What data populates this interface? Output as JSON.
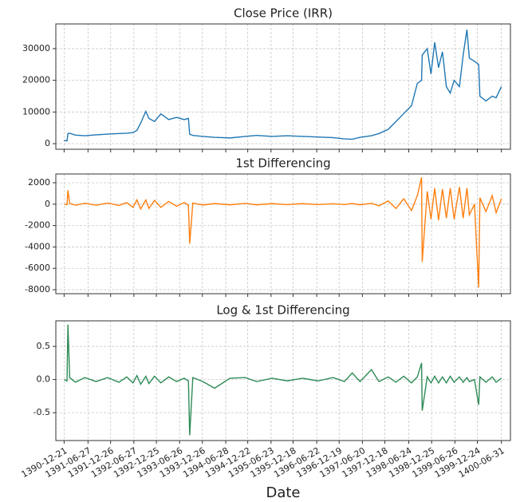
{
  "chart_data": [
    {
      "type": "line",
      "title": "Close Price (IRR)",
      "color": "#1f77b4",
      "grid": true,
      "x": [
        "1390-12-21",
        "1391-01-15",
        "1391-01-22",
        "1391-02-05",
        "1391-03-20",
        "1391-06-01",
        "1391-09-01",
        "1391-12-01",
        "1392-03-01",
        "1392-05-01",
        "1392-06-20",
        "1392-07-20",
        "1392-08-20",
        "1392-10-01",
        "1392-10-25",
        "1392-12-10",
        "1393-02-01",
        "1393-04-01",
        "1393-06-01",
        "1393-08-01",
        "1393-09-05",
        "1393-09-15",
        "1393-10-10",
        "1394-01-01",
        "1394-04-01",
        "1394-08-01",
        "1394-12-01",
        "1395-03-01",
        "1395-07-01",
        "1395-11-01",
        "1396-03-01",
        "1396-07-01",
        "1396-11-01",
        "1397-02-01",
        "1397-04-01",
        "1397-06-01",
        "1397-09-01",
        "1397-11-01",
        "1398-01-15",
        "1398-03-15",
        "1398-05-15",
        "1398-07-15",
        "1398-09-01",
        "1398-10-05",
        "1398-10-10",
        "1398-11-20",
        "1398-12-20",
        "1399-01-20",
        "1399-02-20",
        "1399-03-20",
        "1399-04-20",
        "1399-05-20",
        "1399-06-20",
        "1399-08-01",
        "1399-09-01",
        "1399-10-01",
        "1399-10-20",
        "1399-12-01",
        "1400-01-05",
        "1400-01-15",
        "1400-03-01",
        "1400-04-20",
        "1400-05-20",
        "1400-06-31"
      ],
      "values": [
        1000,
        900,
        3200,
        3300,
        2700,
        2500,
        2800,
        3000,
        3200,
        3300,
        3500,
        4200,
        6500,
        10200,
        8000,
        7000,
        9400,
        7600,
        8300,
        7600,
        8000,
        3000,
        2600,
        2300,
        2000,
        1800,
        2300,
        2600,
        2300,
        2500,
        2300,
        2100,
        1900,
        1500,
        1400,
        2000,
        2500,
        3200,
        4500,
        7000,
        9500,
        12000,
        19000,
        20000,
        28000,
        30000,
        22000,
        32000,
        24000,
        29000,
        18000,
        16000,
        20000,
        18000,
        28000,
        36000,
        27000,
        26000,
        25000,
        15000,
        13500,
        15000,
        14500,
        18000
      ],
      "ylim": [
        -1760,
        37800
      ],
      "yticks": [
        0,
        10000,
        20000,
        30000
      ]
    },
    {
      "type": "line",
      "title": "1st Differencing",
      "color": "#ff7f0e",
      "grid": true,
      "x": [
        "1390-12-21",
        "1391-01-15",
        "1391-01-22",
        "1391-02-05",
        "1391-03-20",
        "1391-06-01",
        "1391-09-01",
        "1391-12-01",
        "1392-03-01",
        "1392-05-01",
        "1392-06-20",
        "1392-07-20",
        "1392-08-20",
        "1392-10-01",
        "1392-10-25",
        "1392-12-10",
        "1393-02-01",
        "1393-04-01",
        "1393-06-01",
        "1393-08-01",
        "1393-09-05",
        "1393-09-15",
        "1393-10-10",
        "1394-01-01",
        "1394-04-01",
        "1394-08-01",
        "1394-12-01",
        "1395-03-01",
        "1395-07-01",
        "1395-11-01",
        "1396-03-01",
        "1396-07-01",
        "1396-11-01",
        "1397-02-01",
        "1397-04-01",
        "1397-06-01",
        "1397-09-01",
        "1397-11-01",
        "1398-01-15",
        "1398-03-15",
        "1398-05-15",
        "1398-07-15",
        "1398-09-01",
        "1398-10-05",
        "1398-10-10",
        "1398-11-20",
        "1398-12-20",
        "1399-01-20",
        "1399-02-20",
        "1399-03-20",
        "1399-04-20",
        "1399-05-20",
        "1399-06-20",
        "1399-08-01",
        "1399-09-01",
        "1399-10-01",
        "1399-10-20",
        "1399-12-01",
        "1400-01-05",
        "1400-01-15",
        "1400-03-01",
        "1400-04-20",
        "1400-05-20",
        "1400-06-31"
      ],
      "values": [
        0,
        -40,
        1300,
        60,
        -100,
        80,
        -90,
        100,
        -120,
        150,
        -300,
        400,
        -450,
        400,
        -400,
        350,
        -300,
        250,
        -200,
        150,
        -100,
        -3700,
        100,
        -80,
        60,
        -60,
        70,
        -60,
        50,
        -50,
        50,
        -40,
        40,
        -40,
        60,
        -60,
        80,
        -150,
        300,
        -400,
        500,
        -600,
        800,
        2500,
        -5400,
        1200,
        -1400,
        1500,
        -1500,
        1400,
        -1300,
        1500,
        -1400,
        1600,
        -1300,
        1500,
        -1000,
        0,
        -7800,
        600,
        -700,
        800,
        -800,
        500
      ],
      "ylim": [
        -8370,
        2820
      ],
      "yticks": [
        -8000,
        -6000,
        -4000,
        -2000,
        0,
        2000
      ]
    },
    {
      "type": "line",
      "title": "Log & 1st Differencing",
      "color": "#2e8b57",
      "grid": true,
      "xlabel": "Date",
      "x": [
        "1390-12-21",
        "1391-01-15",
        "1391-01-22",
        "1391-02-05",
        "1391-03-20",
        "1391-06-01",
        "1391-09-01",
        "1391-12-01",
        "1392-03-01",
        "1392-05-01",
        "1392-06-20",
        "1392-07-20",
        "1392-08-20",
        "1392-10-01",
        "1392-10-25",
        "1392-12-10",
        "1393-02-01",
        "1393-04-01",
        "1393-06-01",
        "1393-08-01",
        "1393-09-05",
        "1393-09-15",
        "1393-10-10",
        "1394-01-01",
        "1394-04-01",
        "1394-08-01",
        "1394-12-01",
        "1395-03-01",
        "1395-07-01",
        "1395-11-01",
        "1396-03-01",
        "1396-07-01",
        "1396-11-01",
        "1397-02-01",
        "1397-04-01",
        "1397-06-01",
        "1397-09-01",
        "1397-11-01",
        "1398-01-15",
        "1398-03-15",
        "1398-05-15",
        "1398-07-15",
        "1398-09-01",
        "1398-10-05",
        "1398-10-10",
        "1398-11-20",
        "1398-12-20",
        "1399-01-20",
        "1399-02-20",
        "1399-03-20",
        "1399-04-20",
        "1399-05-20",
        "1399-06-20",
        "1399-08-01",
        "1399-09-01",
        "1399-10-01",
        "1399-10-20",
        "1399-12-01",
        "1400-01-05",
        "1400-01-15",
        "1400-03-01",
        "1400-04-20",
        "1400-05-20",
        "1400-06-31"
      ],
      "values": [
        0,
        -0.02,
        0.83,
        0.03,
        -0.04,
        0.03,
        -0.03,
        0.03,
        -0.04,
        0.04,
        -0.05,
        0.06,
        -0.07,
        0.05,
        -0.06,
        0.05,
        -0.05,
        0.04,
        -0.03,
        0.02,
        -0.02,
        -0.84,
        0.03,
        -0.03,
        -0.13,
        0.02,
        0.03,
        -0.03,
        0.02,
        -0.02,
        0.02,
        -0.02,
        0.03,
        -0.03,
        0.1,
        -0.03,
        0.15,
        -0.03,
        0.04,
        -0.04,
        0.05,
        -0.05,
        0.04,
        0.25,
        -0.47,
        0.04,
        -0.05,
        0.05,
        -0.05,
        0.04,
        -0.05,
        0.05,
        -0.04,
        0.04,
        -0.04,
        0.03,
        -0.03,
        0,
        -0.38,
        0.04,
        -0.04,
        0.04,
        -0.04,
        0.02
      ],
      "ylim": [
        -0.92,
        0.886
      ],
      "yticks": [
        -0.5,
        {
          "value": 0,
          "label": "0.0"
        },
        0.5
      ],
      "xlim": [
        "1390-10-15",
        "1400-09-12"
      ],
      "xticks": [
        "1390-12-21",
        "1391-06-27",
        "1391-12-26",
        "1392-06-27",
        "1392-12-25",
        "1393-06-26",
        "1393-12-26",
        "1394-06-28",
        "1394-12-22",
        "1395-06-23",
        "1395-12-18",
        "1396-06-22",
        "1396-12-19",
        "1397-06-20",
        "1397-12-18",
        "1398-06-24",
        "1398-12-25",
        "1399-06-26",
        "1399-12-24",
        "1400-06-31"
      ]
    }
  ]
}
